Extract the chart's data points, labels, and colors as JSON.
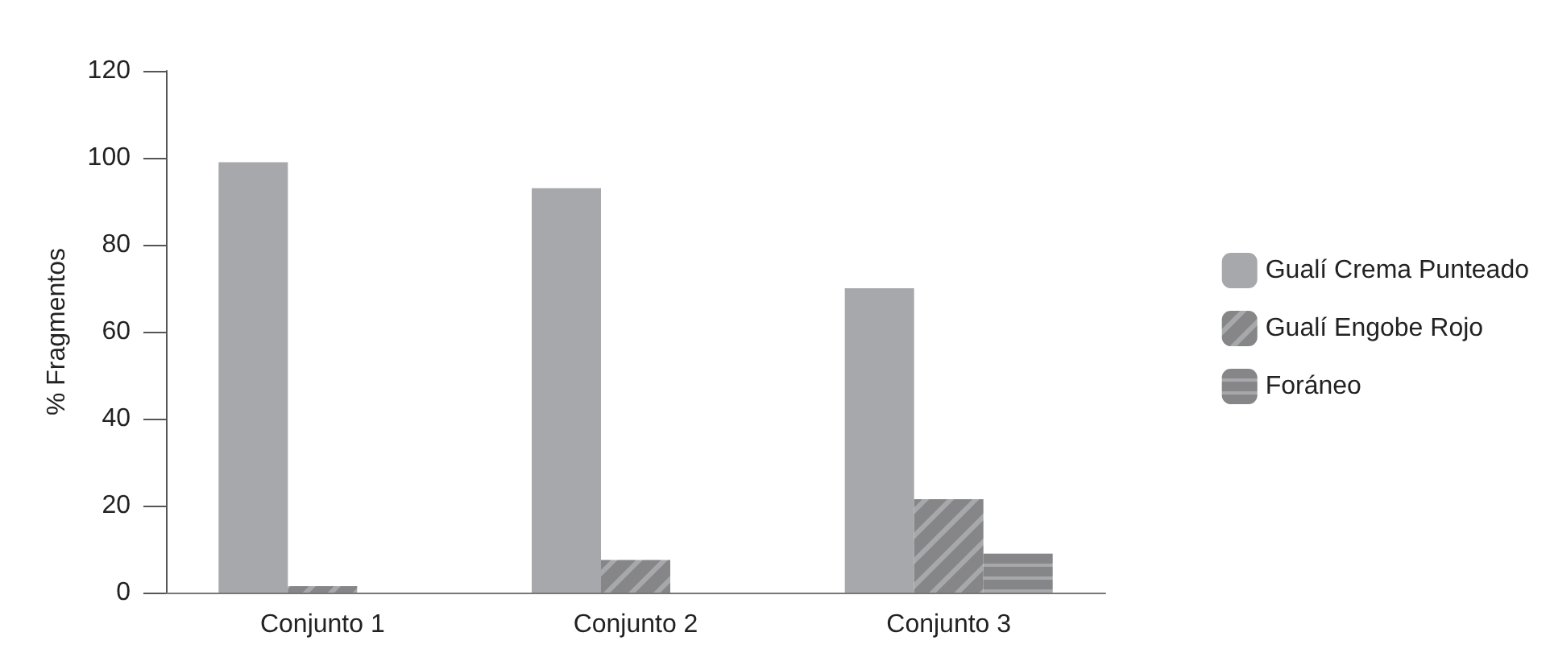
{
  "chart_data": {
    "type": "bar",
    "ylabel": "% Fragmentos",
    "categories": [
      "Conjunto 1",
      "Conjunto 2",
      "Conjunto 3"
    ],
    "series": [
      {
        "name": "Gualí Crema Punteado",
        "color": "#a7a8ab",
        "values": [
          99,
          93,
          70
        ]
      },
      {
        "name": "Gualí Engobe Rojo",
        "color": "#a7a8ab",
        "values": [
          1.5,
          7.5,
          21.5
        ]
      },
      {
        "name": "Foráneo",
        "color": "#a7a8ab",
        "values": [
          0,
          0,
          9
        ]
      }
    ],
    "ylim": [
      0,
      120
    ],
    "yticks": [
      0,
      20,
      40,
      60,
      80,
      100,
      120
    ],
    "grid": false,
    "legend": "right"
  }
}
